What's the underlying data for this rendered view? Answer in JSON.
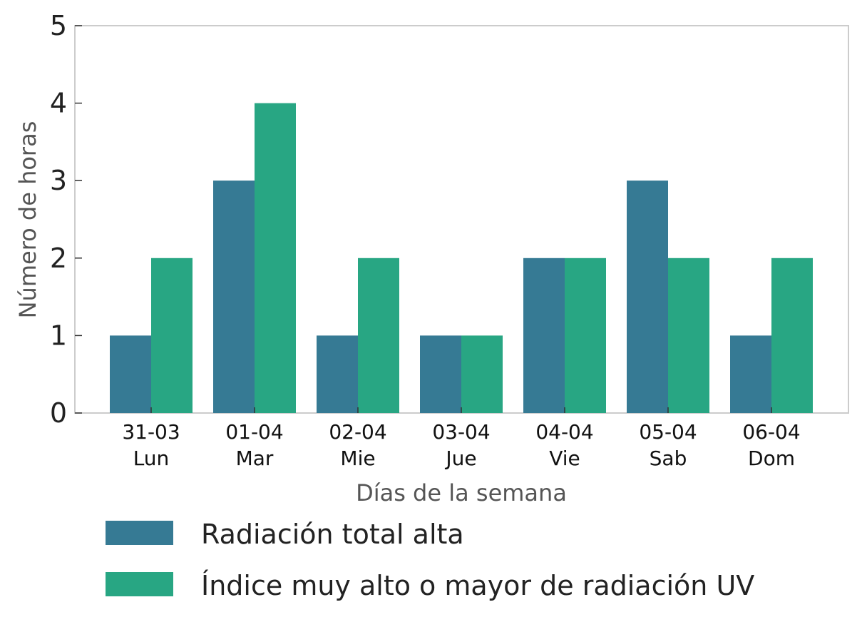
{
  "chart_data": {
    "type": "bar",
    "categories": [
      [
        "31-03",
        "Lun"
      ],
      [
        "01-04",
        "Mar"
      ],
      [
        "02-04",
        "Mie"
      ],
      [
        "03-04",
        "Jue"
      ],
      [
        "04-04",
        "Vie"
      ],
      [
        "05-04",
        "Sab"
      ],
      [
        "06-04",
        "Dom"
      ]
    ],
    "series": [
      {
        "name": "Radiación total alta",
        "color": "#367a94",
        "values": [
          1,
          3,
          1,
          1,
          2,
          3,
          1
        ]
      },
      {
        "name": "Índice muy alto o mayor de radiación UV",
        "color": "#28a683",
        "values": [
          2,
          4,
          2,
          1,
          2,
          2,
          2
        ]
      }
    ],
    "xlabel": "Días de la semana",
    "ylabel": "Número de horas",
    "ylim": [
      0,
      5
    ],
    "yticks": [
      "0",
      "1",
      "2",
      "3",
      "4",
      "5"
    ],
    "grid": false,
    "legend_position": "bottom"
  }
}
